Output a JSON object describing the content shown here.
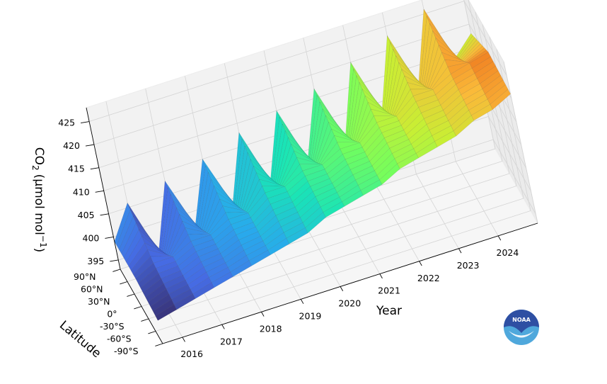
{
  "chart_data": {
    "type": "surface-3d",
    "xlabel": "Year",
    "ylabel": "Latitude",
    "zlabel": "CO",
    "zlabel_sub": "2",
    "zlabel_units_pre": "(μmol mol",
    "zlabel_units_sup": "−1",
    "zlabel_units_post": ")",
    "x_ticks": [
      "2016",
      "2017",
      "2018",
      "2019",
      "2020",
      "2021",
      "2022",
      "2023",
      "2024"
    ],
    "y_ticks": [
      "90°N",
      "60°N",
      "30°N",
      "0°",
      "-30°S",
      "-60°S",
      "-90°S"
    ],
    "z_ticks": [
      "395",
      "400",
      "405",
      "410",
      "415",
      "420",
      "425"
    ],
    "xlim": [
      2015.5,
      2025
    ],
    "ylim": [
      -90,
      90
    ],
    "zlim": [
      393,
      428
    ],
    "colormap": "turbo",
    "grid": true,
    "series": [
      {
        "latitude": 90,
        "time": [
          2015.5,
          2016.0,
          2016.5,
          2017.0,
          2017.5,
          2018.0,
          2018.5,
          2019.0,
          2019.5,
          2020.0,
          2020.5,
          2021.0,
          2021.5,
          2022.0,
          2022.5,
          2023.0,
          2023.5,
          2024.0,
          2024.5,
          2025.0
        ],
        "co2": [
          399,
          406,
          394,
          408,
          397,
          410,
          399,
          413,
          401,
          415,
          403,
          417,
          405,
          420,
          408,
          423,
          411,
          426,
          414,
          418
        ]
      },
      {
        "latitude": 0,
        "time": [
          2015.5,
          2016.0,
          2016.5,
          2017.0,
          2017.5,
          2018.0,
          2018.5,
          2019.0,
          2019.5,
          2020.0,
          2020.5,
          2021.0,
          2021.5,
          2022.0,
          2022.5,
          2023.0,
          2023.5,
          2024.0,
          2024.5,
          2025.0
        ],
        "co2": [
          399,
          401,
          401,
          403,
          403,
          405,
          405,
          408,
          408,
          410,
          410,
          412,
          412,
          415,
          415,
          418,
          418,
          420,
          421,
          422
        ]
      },
      {
        "latitude": -90,
        "time": [
          2015.5,
          2016.0,
          2016.5,
          2017.0,
          2017.5,
          2018.0,
          2018.5,
          2019.0,
          2019.5,
          2020.0,
          2020.5,
          2021.0,
          2021.5,
          2022.0,
          2022.5,
          2023.0,
          2023.5,
          2024.0,
          2024.5,
          2025.0
        ],
        "co2": [
          398,
          399,
          400,
          401,
          402,
          403,
          404,
          405,
          406,
          408,
          409,
          410,
          411,
          413,
          414,
          415,
          416,
          418,
          419,
          421
        ]
      }
    ]
  },
  "logo": {
    "name": "noaa-logo",
    "text": "NOAA",
    "color_top": "#2e4fa3",
    "color_bottom": "#4fa8dc"
  }
}
